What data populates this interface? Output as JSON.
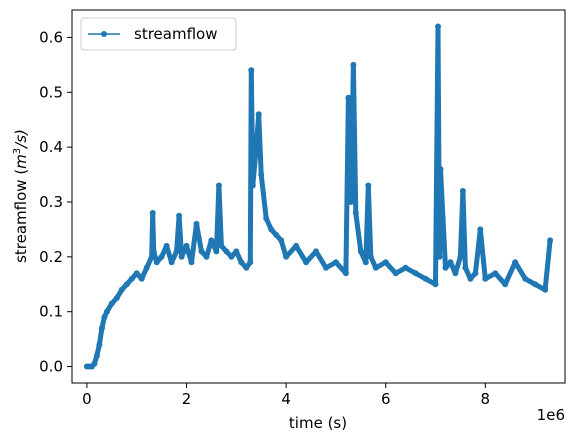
{
  "chart_data": {
    "type": "line",
    "title": "",
    "xlabel": "time (s)",
    "ylabel": "streamflow (m³/s)",
    "ylabel_base": "streamflow (",
    "ylabel_unit_main": "m",
    "ylabel_unit_sup": "3",
    "ylabel_unit_rest": "/s)",
    "x_offset_label": "1e6",
    "xlim": [
      -300000,
      9600000
    ],
    "ylim": [
      -0.03,
      0.65
    ],
    "x_ticks": [
      0,
      2000000,
      4000000,
      6000000,
      8000000
    ],
    "x_tick_labels": [
      "0",
      "2",
      "4",
      "6",
      "8"
    ],
    "y_ticks": [
      0.0,
      0.1,
      0.2,
      0.3,
      0.4,
      0.5,
      0.6
    ],
    "y_tick_labels": [
      "0.0",
      "0.1",
      "0.2",
      "0.3",
      "0.4",
      "0.5",
      "0.6"
    ],
    "grid": false,
    "legend_position": "top-left",
    "series": [
      {
        "name": "streamflow",
        "color": "#1f77b4",
        "marker": "circle",
        "x": [
          0,
          50000,
          100000,
          150000,
          200000,
          250000,
          300000,
          350000,
          400000,
          500000,
          600000,
          700000,
          800000,
          900000,
          1000000,
          1100000,
          1200000,
          1300000,
          1320000,
          1340000,
          1400000,
          1500000,
          1600000,
          1700000,
          1800000,
          1850000,
          1900000,
          2000000,
          2100000,
          2200000,
          2300000,
          2400000,
          2500000,
          2600000,
          2650000,
          2700000,
          2800000,
          2900000,
          3000000,
          3100000,
          3200000,
          3280000,
          3300000,
          3330000,
          3400000,
          3450000,
          3500000,
          3600000,
          3700000,
          3800000,
          3900000,
          4000000,
          4200000,
          4400000,
          4600000,
          4800000,
          5000000,
          5200000,
          5250000,
          5300000,
          5350000,
          5400000,
          5500000,
          5600000,
          5650000,
          5700000,
          5800000,
          6000000,
          6200000,
          6400000,
          6600000,
          6800000,
          7000000,
          7050000,
          7080000,
          7100000,
          7200000,
          7300000,
          7400000,
          7500000,
          7550000,
          7600000,
          7700000,
          7800000,
          7900000,
          8000000,
          8200000,
          8400000,
          8600000,
          8800000,
          9000000,
          9200000,
          9300000
        ],
        "y": [
          0.0,
          0.0,
          0.0,
          0.005,
          0.02,
          0.04,
          0.07,
          0.09,
          0.1,
          0.115,
          0.125,
          0.14,
          0.15,
          0.16,
          0.17,
          0.16,
          0.18,
          0.2,
          0.28,
          0.21,
          0.19,
          0.2,
          0.22,
          0.19,
          0.21,
          0.275,
          0.2,
          0.22,
          0.19,
          0.26,
          0.21,
          0.2,
          0.23,
          0.21,
          0.33,
          0.22,
          0.21,
          0.2,
          0.21,
          0.19,
          0.18,
          0.19,
          0.54,
          0.33,
          0.4,
          0.46,
          0.35,
          0.27,
          0.25,
          0.24,
          0.23,
          0.2,
          0.22,
          0.19,
          0.21,
          0.18,
          0.19,
          0.17,
          0.49,
          0.3,
          0.55,
          0.28,
          0.21,
          0.19,
          0.33,
          0.2,
          0.18,
          0.19,
          0.17,
          0.18,
          0.17,
          0.16,
          0.15,
          0.62,
          0.2,
          0.36,
          0.18,
          0.19,
          0.17,
          0.2,
          0.32,
          0.18,
          0.16,
          0.17,
          0.25,
          0.16,
          0.17,
          0.15,
          0.19,
          0.16,
          0.15,
          0.14,
          0.23
        ]
      }
    ]
  }
}
